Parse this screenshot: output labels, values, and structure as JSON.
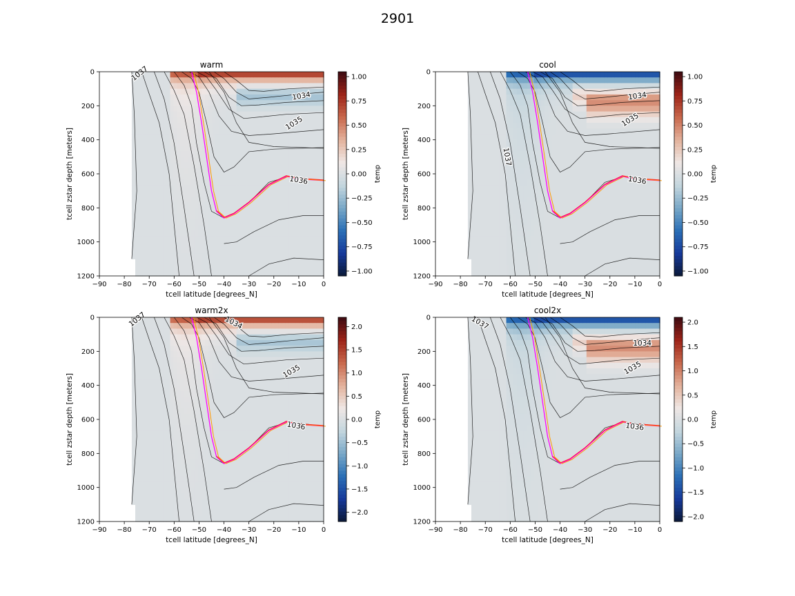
{
  "figure": {
    "suptitle": "2901",
    "colorbar_label": "temp",
    "colormap": [
      "#0b1936",
      "#16399a",
      "#2a6fb6",
      "#79a8c7",
      "#c4d6de",
      "#efe7e5",
      "#e3b29c",
      "#c8684c",
      "#9c2318",
      "#3d0a12"
    ],
    "colormap_name": "balance (diverging)",
    "contour_color": "#000000",
    "highlight_line_colors": [
      "#ff00ff",
      "#ff9900",
      "#ff2020"
    ]
  },
  "chart_data": [
    {
      "type": "heatmap",
      "title": "warm",
      "xlabel": "tcell latitude [degrees_N]",
      "ylabel": "tcell zstar depth [meters]",
      "xlim": [
        -90,
        0
      ],
      "ylim": [
        1200,
        0
      ],
      "xticks": [
        "−90",
        "−80",
        "−70",
        "−60",
        "−50",
        "−40",
        "−30",
        "−20",
        "−10",
        "0"
      ],
      "yticks": [
        "0",
        "200",
        "400",
        "600",
        "800",
        "1000",
        "1200"
      ],
      "colorbar": {
        "label": "temp",
        "vmin": -1.05,
        "vmax": 1.05,
        "ticks": [
          "−1.00",
          "−0.75",
          "−0.50",
          "−0.25",
          "0.00",
          "0.25",
          "0.50",
          "0.75",
          "1.00"
        ]
      },
      "contour_labels": [
        "1037",
        "1034",
        "1035",
        "1036"
      ],
      "anomaly_sign": 1,
      "surface_anomaly_peak": 1.0
    },
    {
      "type": "heatmap",
      "title": "cool",
      "xlabel": "tcell latitude [degrees_N]",
      "ylabel": "tcell zstar depth [meters]",
      "xlim": [
        -90,
        0
      ],
      "ylim": [
        1200,
        0
      ],
      "xticks": [
        "−90",
        "−80",
        "−70",
        "−60",
        "−50",
        "−40",
        "−30",
        "−20",
        "−10",
        "0"
      ],
      "yticks": [
        "0",
        "200",
        "400",
        "600",
        "800",
        "1000",
        "1200"
      ],
      "colorbar": {
        "label": "temp",
        "vmin": -1.05,
        "vmax": 1.05,
        "ticks": [
          "−1.00",
          "−0.75",
          "−0.50",
          "−0.25",
          "0.00",
          "0.25",
          "0.50",
          "0.75",
          "1.00"
        ]
      },
      "contour_labels": [
        "1034",
        "1035",
        "1037",
        "1036"
      ],
      "anomaly_sign": -1,
      "surface_anomaly_peak": -1.0
    },
    {
      "type": "heatmap",
      "title": "warm2x",
      "xlabel": "tcell latitude [degrees_N]",
      "ylabel": "tcell zstar depth [meters]",
      "xlim": [
        -90,
        0
      ],
      "ylim": [
        1200,
        0
      ],
      "xticks": [
        "−90",
        "−80",
        "−70",
        "−60",
        "−50",
        "−40",
        "−30",
        "−20",
        "−10",
        "0"
      ],
      "yticks": [
        "0",
        "200",
        "400",
        "600",
        "800",
        "1000",
        "1200"
      ],
      "colorbar": {
        "label": "temp",
        "vmin": -2.2,
        "vmax": 2.2,
        "ticks": [
          "−2.0",
          "−1.5",
          "−1.0",
          "−0.5",
          "0.0",
          "0.5",
          "1.0",
          "1.5",
          "2.0"
        ]
      },
      "contour_labels": [
        "1037",
        "1034",
        "1035",
        "1036"
      ],
      "anomaly_sign": 1,
      "surface_anomaly_peak": 2.0
    },
    {
      "type": "heatmap",
      "title": "cool2x",
      "xlabel": "tcell latitude [degrees_N]",
      "ylabel": "tcell zstar depth [meters]",
      "xlim": [
        -90,
        0
      ],
      "ylim": [
        1200,
        0
      ],
      "xticks": [
        "−90",
        "−80",
        "−70",
        "−60",
        "−50",
        "−40",
        "−30",
        "−20",
        "−10",
        "0"
      ],
      "yticks": [
        "0",
        "200",
        "400",
        "600",
        "800",
        "1000",
        "1200"
      ],
      "colorbar": {
        "label": "temp",
        "vmin": -2.1,
        "vmax": 2.1,
        "ticks": [
          "−2.0",
          "−1.5",
          "−1.0",
          "−0.5",
          "0.0",
          "0.5",
          "1.0",
          "1.5",
          "2.0"
        ]
      },
      "contour_labels": [
        "1037",
        "1034",
        "1035",
        "1036"
      ],
      "anomaly_sign": -1,
      "surface_anomaly_peak": -2.0
    }
  ]
}
